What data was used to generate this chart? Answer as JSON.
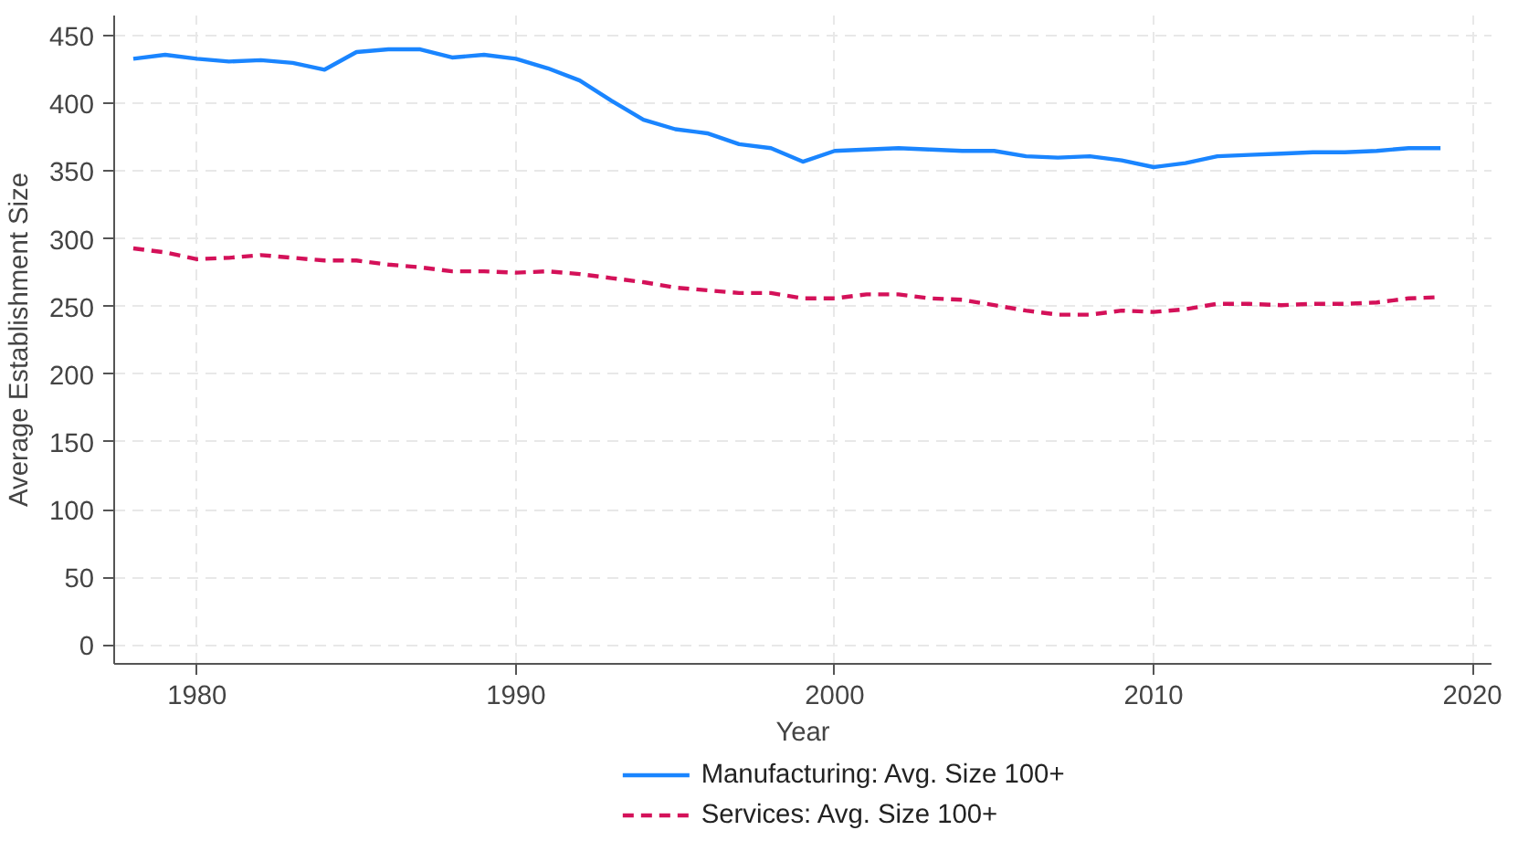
{
  "chart_data": {
    "type": "line",
    "xlabel": "Year",
    "ylabel": "Average Establishment Size",
    "x": [
      1978,
      1979,
      1980,
      1981,
      1982,
      1983,
      1984,
      1985,
      1986,
      1987,
      1988,
      1989,
      1990,
      1991,
      1992,
      1993,
      1994,
      1995,
      1996,
      1997,
      1998,
      1999,
      2000,
      2001,
      2002,
      2003,
      2004,
      2005,
      2006,
      2007,
      2008,
      2009,
      2010,
      2011,
      2012,
      2013,
      2014,
      2015,
      2016,
      2017,
      2018,
      2019
    ],
    "series": [
      {
        "name": "Manufacturing: Avg. Size 100+",
        "color": "#1a85ff",
        "line_style": "solid",
        "values": [
          433,
          436,
          433,
          431,
          432,
          430,
          425,
          438,
          440,
          440,
          434,
          436,
          433,
          426,
          417,
          402,
          388,
          381,
          378,
          370,
          367,
          357,
          365,
          366,
          367,
          366,
          365,
          365,
          361,
          360,
          361,
          358,
          353,
          356,
          361,
          362,
          363,
          364,
          364,
          365,
          367,
          367
        ]
      },
      {
        "name": "Services: Avg. Size 100+",
        "color": "#d41159",
        "line_style": "dashed",
        "values": [
          293,
          290,
          285,
          286,
          288,
          286,
          284,
          284,
          281,
          279,
          276,
          276,
          275,
          276,
          274,
          271,
          268,
          264,
          262,
          260,
          260,
          256,
          256,
          259,
          259,
          256,
          255,
          251,
          247,
          244,
          244,
          247,
          246,
          248,
          252,
          252,
          251,
          252,
          252,
          253,
          256,
          257
        ]
      }
    ],
    "xlim": [
      1977.4,
      2020.6
    ],
    "xticks": [
      1980,
      1990,
      2000,
      2010,
      2020
    ],
    "ylim": [
      -14,
      465
    ],
    "yticks": [
      0,
      50,
      100,
      150,
      200,
      250,
      300,
      350,
      400,
      450
    ],
    "grid": true,
    "legend": "bottom",
    "marker": "none"
  }
}
